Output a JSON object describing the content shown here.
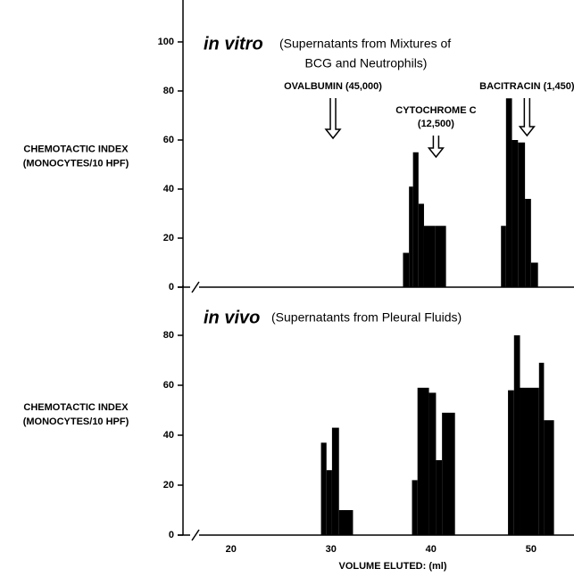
{
  "chart_data": [
    {
      "type": "histogram",
      "title": "in vitro",
      "subtitle": [
        "(Supernatants from Mixtures of",
        "BCG and Neutrophils)"
      ],
      "ylabel": [
        "CHEMOTACTIC INDEX",
        "(MONOCYTES/10 HPF)"
      ],
      "xlim": [
        15.2,
        54.3
      ],
      "ylim": [
        0,
        110
      ],
      "yticks": [
        0,
        20,
        40,
        60,
        80,
        100
      ],
      "color": "#000000",
      "clusters": [
        {
          "bins": [
            37.2,
            37.8,
            38.2,
            38.75,
            39.3,
            40.4,
            41.5
          ],
          "counts": [
            14,
            41,
            55,
            34,
            25,
            25
          ]
        },
        {
          "bins": [
            47.0,
            47.5,
            48.1,
            48.7,
            49.4,
            50.0,
            50.7
          ],
          "counts": [
            25,
            77,
            60,
            59,
            36,
            10
          ]
        }
      ],
      "annotations": [
        {
          "text": [
            "OVALBUMIN (45,000)"
          ],
          "x": 30.2
        },
        {
          "text": [
            "CYTOCHROME C",
            "(12,500)"
          ],
          "x": 40.5
        },
        {
          "text": [
            "BACITRACIN (1,450)"
          ],
          "x": 49.6
        }
      ]
    },
    {
      "type": "histogram",
      "title": "in vivo",
      "subtitle": [
        "(Supernatants from Pleural Fluids)"
      ],
      "ylabel": [
        "CHEMOTACTIC INDEX",
        "(MONOCYTES/10 HPF)"
      ],
      "xlim": [
        15.2,
        54.3
      ],
      "ylim": [
        0,
        100
      ],
      "yticks": [
        0,
        20,
        40,
        60,
        80
      ],
      "color": "#000000",
      "xticks": [
        20,
        30,
        40,
        50
      ],
      "xlabel": "VOLUME ELUTED: (ml)",
      "clusters": [
        {
          "bins": [
            29.0,
            29.55,
            30.1,
            30.8,
            32.2
          ],
          "counts": [
            37,
            26,
            43,
            10
          ]
        },
        {
          "bins": [
            38.1,
            38.65,
            39.8,
            40.5,
            41.1,
            42.4
          ],
          "counts": [
            22,
            59,
            57,
            30,
            49
          ]
        },
        {
          "bins": [
            47.7,
            48.3,
            48.9,
            50.8,
            51.3,
            52.3
          ],
          "counts": [
            58,
            80,
            59,
            69,
            46
          ]
        }
      ]
    }
  ]
}
